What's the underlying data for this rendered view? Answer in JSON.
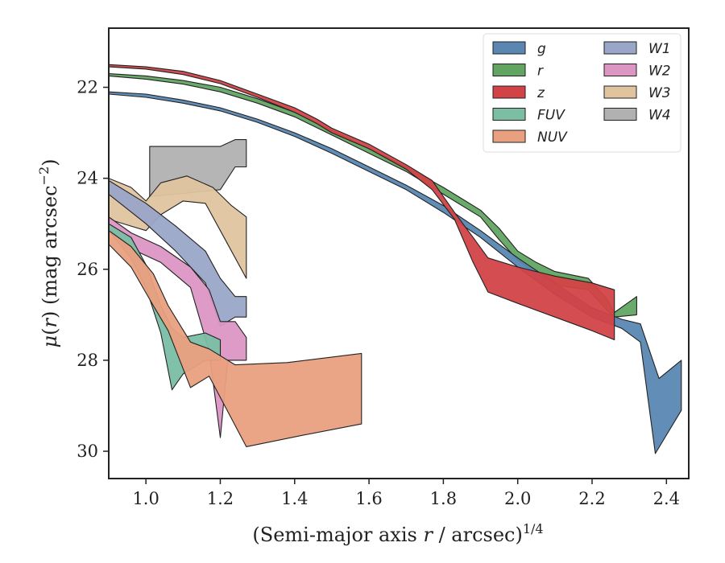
{
  "chart_data": {
    "type": "area",
    "xlabel": "(Semi-major axis r / arcsec)",
    "xlabel_var": "r",
    "xlabel_exp": "1/4",
    "ylabel_var": "r",
    "ylabel_exp": "−2",
    "xlim": [
      0.9,
      2.46
    ],
    "ylim": [
      30.6,
      20.7
    ],
    "y_inverted": true,
    "xticks": [
      "1.0",
      "1.2",
      "1.4",
      "1.6",
      "1.8",
      "2.0",
      "2.2",
      "2.4"
    ],
    "xtick_values": [
      1.0,
      1.2,
      1.4,
      1.6,
      1.8,
      2.0,
      2.2,
      2.4
    ],
    "yticks": [
      "22",
      "24",
      "26",
      "28",
      "30"
    ],
    "ytick_values": [
      22,
      24,
      26,
      28,
      30
    ],
    "grid": false,
    "legend_position": "top-right",
    "legend_columns": 2,
    "series": [
      {
        "name": "W4",
        "color": "#b1b1b1",
        "upper": [
          [
            1.01,
            23.3
          ],
          [
            1.08,
            23.3
          ],
          [
            1.14,
            23.3
          ],
          [
            1.2,
            23.3
          ],
          [
            1.24,
            23.15
          ],
          [
            1.27,
            23.15
          ]
        ],
        "lower": [
          [
            1.01,
            24.4
          ],
          [
            1.08,
            24.35
          ],
          [
            1.14,
            24.3
          ],
          [
            1.2,
            24.25
          ],
          [
            1.24,
            23.75
          ],
          [
            1.27,
            23.75
          ]
        ]
      },
      {
        "name": "W3",
        "color": "#dfc49f",
        "upper": [
          [
            0.9,
            24.0
          ],
          [
            0.96,
            24.2
          ],
          [
            1.0,
            24.5
          ],
          [
            1.04,
            24.1
          ],
          [
            1.11,
            23.95
          ],
          [
            1.18,
            24.2
          ],
          [
            1.23,
            24.6
          ],
          [
            1.27,
            24.85
          ]
        ],
        "lower": [
          [
            0.9,
            24.9
          ],
          [
            0.96,
            25.05
          ],
          [
            1.0,
            25.15
          ],
          [
            1.04,
            24.8
          ],
          [
            1.1,
            24.5
          ],
          [
            1.16,
            24.55
          ],
          [
            1.21,
            25.3
          ],
          [
            1.27,
            26.2
          ]
        ]
      },
      {
        "name": "W1",
        "color": "#9aa6c8",
        "upper": [
          [
            0.9,
            24.05
          ],
          [
            1.0,
            24.55
          ],
          [
            1.08,
            25.05
          ],
          [
            1.16,
            25.6
          ],
          [
            1.2,
            26.2
          ],
          [
            1.24,
            26.6
          ],
          [
            1.27,
            26.6
          ]
        ],
        "lower": [
          [
            0.9,
            24.35
          ],
          [
            1.0,
            25.0
          ],
          [
            1.08,
            25.6
          ],
          [
            1.16,
            26.3
          ],
          [
            1.2,
            27.25
          ],
          [
            1.24,
            27.05
          ],
          [
            1.27,
            27.05
          ]
        ]
      },
      {
        "name": "W2",
        "color": "#dc96c4",
        "upper": [
          [
            0.9,
            24.85
          ],
          [
            0.96,
            25.2
          ],
          [
            1.04,
            25.5
          ],
          [
            1.12,
            25.95
          ],
          [
            1.17,
            26.45
          ],
          [
            1.2,
            27.15
          ],
          [
            1.24,
            27.15
          ],
          [
            1.27,
            27.5
          ]
        ],
        "lower": [
          [
            0.9,
            25.1
          ],
          [
            0.96,
            25.55
          ],
          [
            1.04,
            25.85
          ],
          [
            1.12,
            26.4
          ],
          [
            1.17,
            27.8
          ],
          [
            1.2,
            29.7
          ],
          [
            1.22,
            28.0
          ],
          [
            1.27,
            28.0
          ]
        ]
      },
      {
        "name": "FUV",
        "color": "#7bbea4",
        "upper": [
          [
            0.9,
            25.0
          ],
          [
            0.96,
            25.3
          ],
          [
            1.0,
            25.9
          ],
          [
            1.04,
            26.8
          ],
          [
            1.07,
            27.3
          ],
          [
            1.1,
            27.5
          ],
          [
            1.16,
            27.4
          ],
          [
            1.2,
            27.55
          ]
        ],
        "lower": [
          [
            0.9,
            25.15
          ],
          [
            0.96,
            25.75
          ],
          [
            1.0,
            26.4
          ],
          [
            1.04,
            27.4
          ],
          [
            1.07,
            28.65
          ],
          [
            1.1,
            28.3
          ],
          [
            1.16,
            28.0
          ],
          [
            1.2,
            28.0
          ]
        ]
      },
      {
        "name": "NUV",
        "color": "#e9a07f",
        "upper": [
          [
            0.9,
            25.15
          ],
          [
            0.96,
            25.5
          ],
          [
            1.02,
            26.1
          ],
          [
            1.06,
            26.8
          ],
          [
            1.12,
            27.6
          ],
          [
            1.17,
            27.75
          ],
          [
            1.24,
            28.1
          ],
          [
            1.38,
            28.05
          ],
          [
            1.58,
            27.85
          ]
        ],
        "lower": [
          [
            0.9,
            25.45
          ],
          [
            0.96,
            25.95
          ],
          [
            1.02,
            26.8
          ],
          [
            1.06,
            27.35
          ],
          [
            1.12,
            28.6
          ],
          [
            1.17,
            28.35
          ],
          [
            1.27,
            29.9
          ],
          [
            1.42,
            29.65
          ],
          [
            1.58,
            29.4
          ]
        ]
      },
      {
        "name": "r",
        "color": "#62a563",
        "upper": [
          [
            0.9,
            21.7
          ],
          [
            1.0,
            21.75
          ],
          [
            1.1,
            21.85
          ],
          [
            1.2,
            22.0
          ],
          [
            1.3,
            22.25
          ],
          [
            1.4,
            22.55
          ],
          [
            1.5,
            22.95
          ],
          [
            1.6,
            23.35
          ],
          [
            1.7,
            23.75
          ],
          [
            1.8,
            24.2
          ],
          [
            1.9,
            24.7
          ],
          [
            1.95,
            25.1
          ],
          [
            2.0,
            25.6
          ],
          [
            2.05,
            25.85
          ],
          [
            2.1,
            26.05
          ],
          [
            2.19,
            26.2
          ],
          [
            2.24,
            26.65
          ],
          [
            2.26,
            26.95
          ],
          [
            2.32,
            26.6
          ]
        ],
        "lower": [
          [
            0.9,
            21.75
          ],
          [
            1.0,
            21.82
          ],
          [
            1.1,
            21.93
          ],
          [
            1.2,
            22.1
          ],
          [
            1.3,
            22.35
          ],
          [
            1.4,
            22.65
          ],
          [
            1.5,
            23.05
          ],
          [
            1.6,
            23.45
          ],
          [
            1.7,
            23.85
          ],
          [
            1.8,
            24.35
          ],
          [
            1.9,
            24.85
          ],
          [
            1.95,
            25.35
          ],
          [
            2.0,
            25.8
          ],
          [
            2.05,
            26.1
          ],
          [
            2.1,
            26.35
          ],
          [
            2.19,
            26.45
          ],
          [
            2.24,
            26.9
          ],
          [
            2.26,
            27.05
          ],
          [
            2.32,
            27.0
          ]
        ]
      },
      {
        "name": "g",
        "color": "#5a87b2",
        "upper": [
          [
            0.9,
            22.1
          ],
          [
            1.0,
            22.15
          ],
          [
            1.1,
            22.28
          ],
          [
            1.2,
            22.45
          ],
          [
            1.3,
            22.7
          ],
          [
            1.4,
            23.0
          ],
          [
            1.5,
            23.35
          ],
          [
            1.6,
            23.75
          ],
          [
            1.7,
            24.15
          ],
          [
            1.8,
            24.6
          ],
          [
            1.9,
            25.15
          ],
          [
            2.0,
            25.75
          ],
          [
            2.1,
            26.3
          ],
          [
            2.2,
            26.85
          ],
          [
            2.28,
            27.1
          ],
          [
            2.33,
            27.2
          ],
          [
            2.38,
            28.4
          ],
          [
            2.44,
            28.0
          ]
        ],
        "lower": [
          [
            0.9,
            22.15
          ],
          [
            1.0,
            22.22
          ],
          [
            1.1,
            22.35
          ],
          [
            1.2,
            22.52
          ],
          [
            1.3,
            22.77
          ],
          [
            1.4,
            23.08
          ],
          [
            1.5,
            23.45
          ],
          [
            1.6,
            23.85
          ],
          [
            1.7,
            24.25
          ],
          [
            1.8,
            24.75
          ],
          [
            1.9,
            25.3
          ],
          [
            2.0,
            25.95
          ],
          [
            2.1,
            26.55
          ],
          [
            2.2,
            27.05
          ],
          [
            2.28,
            27.3
          ],
          [
            2.33,
            27.6
          ],
          [
            2.37,
            30.05
          ],
          [
            2.44,
            29.1
          ]
        ]
      },
      {
        "name": "z",
        "color": "#d24347",
        "upper": [
          [
            0.9,
            21.5
          ],
          [
            1.0,
            21.55
          ],
          [
            1.1,
            21.65
          ],
          [
            1.2,
            21.85
          ],
          [
            1.3,
            22.15
          ],
          [
            1.4,
            22.45
          ],
          [
            1.46,
            22.7
          ],
          [
            1.5,
            22.9
          ],
          [
            1.6,
            23.25
          ],
          [
            1.7,
            23.7
          ],
          [
            1.77,
            24.05
          ],
          [
            1.83,
            24.75
          ],
          [
            1.88,
            25.3
          ],
          [
            1.92,
            25.75
          ],
          [
            2.0,
            25.95
          ],
          [
            2.1,
            26.15
          ],
          [
            2.2,
            26.3
          ],
          [
            2.26,
            26.45
          ]
        ],
        "lower": [
          [
            0.9,
            21.55
          ],
          [
            1.0,
            21.6
          ],
          [
            1.1,
            21.72
          ],
          [
            1.2,
            21.92
          ],
          [
            1.3,
            22.22
          ],
          [
            1.4,
            22.55
          ],
          [
            1.46,
            22.8
          ],
          [
            1.5,
            23.0
          ],
          [
            1.6,
            23.35
          ],
          [
            1.7,
            23.8
          ],
          [
            1.77,
            24.25
          ],
          [
            1.83,
            24.9
          ],
          [
            1.88,
            25.85
          ],
          [
            1.92,
            26.5
          ],
          [
            2.0,
            26.75
          ],
          [
            2.1,
            27.05
          ],
          [
            2.2,
            27.35
          ],
          [
            2.26,
            27.55
          ]
        ]
      }
    ],
    "legend_order": [
      "g",
      "r",
      "z",
      "FUV",
      "NUV",
      "W1",
      "W2",
      "W3",
      "W4"
    ]
  }
}
